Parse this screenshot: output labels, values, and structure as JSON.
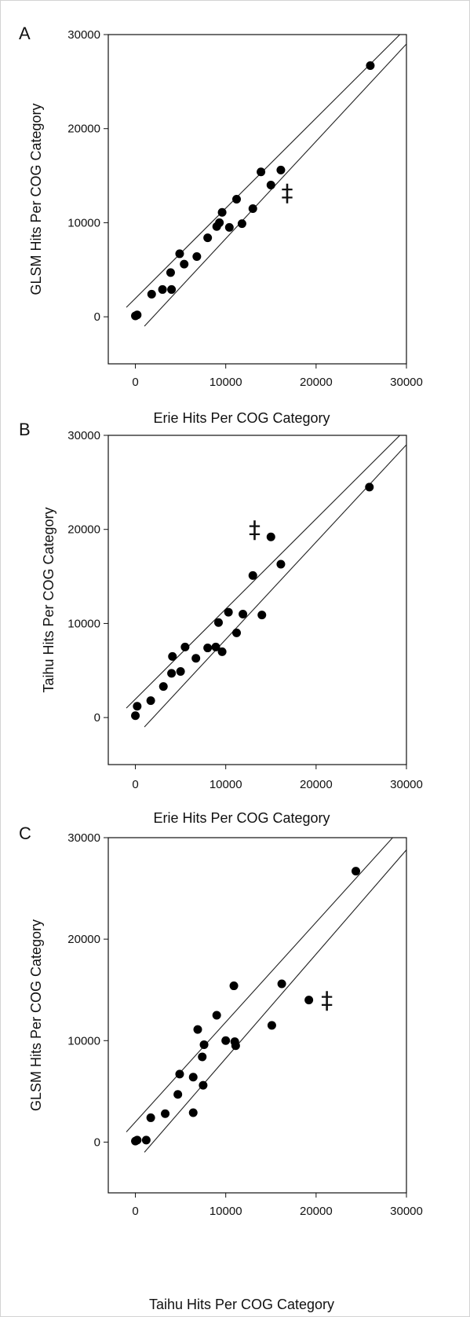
{
  "chart_data": [
    {
      "panel": "A",
      "type": "scatter",
      "xlabel": "Erie Hits Per COG Category",
      "ylabel": "GLSM Hits Per COG Category",
      "xlim": [
        -3000,
        30000
      ],
      "ylim": [
        -5000,
        30000
      ],
      "xticks": [
        "0",
        "10000",
        "20000",
        "30000"
      ],
      "yticks": [
        "0",
        "10000",
        "20000",
        "30000"
      ],
      "annotation": {
        "text": "‡",
        "x": 16800,
        "y": 13200
      },
      "band_lines": [
        [
          -1000,
          1000
        ],
        [
          30000,
          30700
        ],
        [
          1000,
          -1000
        ],
        [
          30000,
          29000
        ]
      ],
      "points": [
        [
          0,
          100
        ],
        [
          200,
          200
        ],
        [
          1800,
          2400
        ],
        [
          3000,
          2900
        ],
        [
          4000,
          2900
        ],
        [
          3900,
          4700
        ],
        [
          5400,
          5600
        ],
        [
          4900,
          6700
        ],
        [
          6800,
          6400
        ],
        [
          8000,
          8400
        ],
        [
          9000,
          9600
        ],
        [
          9300,
          10000
        ],
        [
          9600,
          11100
        ],
        [
          10400,
          9500
        ],
        [
          11200,
          12500
        ],
        [
          11800,
          9900
        ],
        [
          13000,
          11500
        ],
        [
          13900,
          15400
        ],
        [
          15000,
          14000
        ],
        [
          16100,
          15600
        ],
        [
          26000,
          26700
        ]
      ]
    },
    {
      "panel": "B",
      "type": "scatter",
      "xlabel": "Erie Hits Per COG Category",
      "ylabel": "Taihu Hits Per COG Category",
      "xlim": [
        -3000,
        30000
      ],
      "ylim": [
        -5000,
        30000
      ],
      "xticks": [
        "0",
        "10000",
        "20000",
        "30000"
      ],
      "yticks": [
        "0",
        "10000",
        "20000",
        "30000"
      ],
      "annotation": {
        "text": "‡",
        "x": 13200,
        "y": 20000
      },
      "band_lines": [
        [
          -1000,
          1000
        ],
        [
          30000,
          30700
        ],
        [
          1000,
          -1000
        ],
        [
          30000,
          29000
        ]
      ],
      "points": [
        [
          0,
          200
        ],
        [
          200,
          1200
        ],
        [
          1700,
          1800
        ],
        [
          3100,
          3300
        ],
        [
          4000,
          4700
        ],
        [
          4100,
          6500
        ],
        [
          5000,
          4900
        ],
        [
          5500,
          7500
        ],
        [
          6700,
          6300
        ],
        [
          8000,
          7400
        ],
        [
          8900,
          7500
        ],
        [
          9200,
          10100
        ],
        [
          9600,
          7000
        ],
        [
          10300,
          11200
        ],
        [
          11200,
          9000
        ],
        [
          11900,
          11000
        ],
        [
          13000,
          15100
        ],
        [
          14000,
          10900
        ],
        [
          15000,
          19200
        ],
        [
          16100,
          16300
        ],
        [
          25900,
          24500
        ]
      ]
    },
    {
      "panel": "C",
      "type": "scatter",
      "xlabel": "Taihu Hits Per COG Category",
      "ylabel": "GLSM Hits Per COG Category",
      "xlim": [
        -3000,
        30000
      ],
      "ylim": [
        -5000,
        30000
      ],
      "xticks": [
        "0",
        "10000",
        "20000",
        "30000"
      ],
      "yticks": [
        "0",
        "10000",
        "20000",
        "30000"
      ],
      "annotation": {
        "text": "‡",
        "x": 21200,
        "y": 14000
      },
      "band_lines": [
        [
          -1000,
          1000
        ],
        [
          30000,
          31500
        ],
        [
          1000,
          -1000
        ],
        [
          30000,
          28800
        ]
      ],
      "points": [
        [
          0,
          100
        ],
        [
          200,
          200
        ],
        [
          1200,
          200
        ],
        [
          1700,
          2400
        ],
        [
          3300,
          2800
        ],
        [
          4700,
          4700
        ],
        [
          4900,
          6700
        ],
        [
          6400,
          6400
        ],
        [
          6400,
          2900
        ],
        [
          6900,
          11100
        ],
        [
          7400,
          8400
        ],
        [
          7500,
          5600
        ],
        [
          7600,
          9600
        ],
        [
          9000,
          12500
        ],
        [
          10000,
          10000
        ],
        [
          10900,
          15400
        ],
        [
          11000,
          9900
        ],
        [
          11100,
          9500
        ],
        [
          15100,
          11500
        ],
        [
          16200,
          15600
        ],
        [
          19200,
          14000
        ],
        [
          24400,
          26700
        ]
      ]
    }
  ]
}
